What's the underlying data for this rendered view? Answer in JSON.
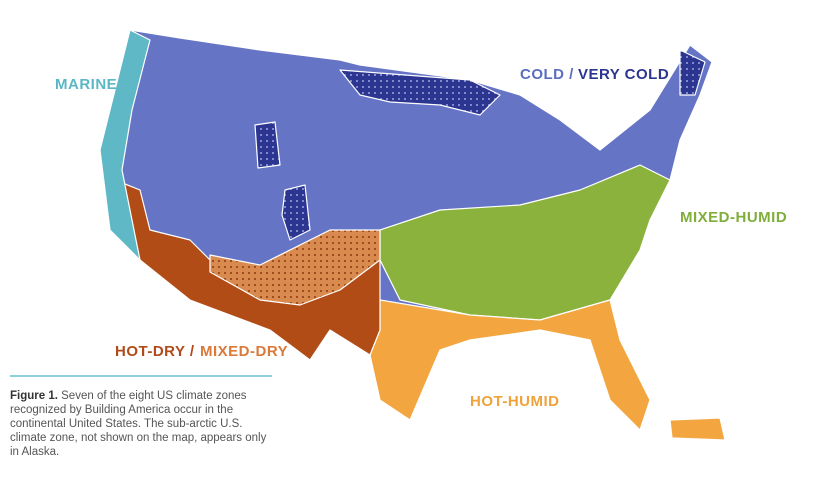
{
  "zones": [
    {
      "label": "MARINE"
    },
    {
      "label": "COLD /"
    },
    {
      "label": "VERY COLD"
    },
    {
      "label": "MIXED-HUMID"
    },
    {
      "label": "HOT-DRY /"
    },
    {
      "label": "MIXED-DRY"
    },
    {
      "label": "HOT-HUMID"
    }
  ],
  "caption": {
    "lead": "Figure 1.",
    "text": "Seven of the eight US climate zones recognized by Building America occur in the continental United States. The sub-arctic U.S. climate zone, not shown on the map, appears only in Alaska."
  }
}
